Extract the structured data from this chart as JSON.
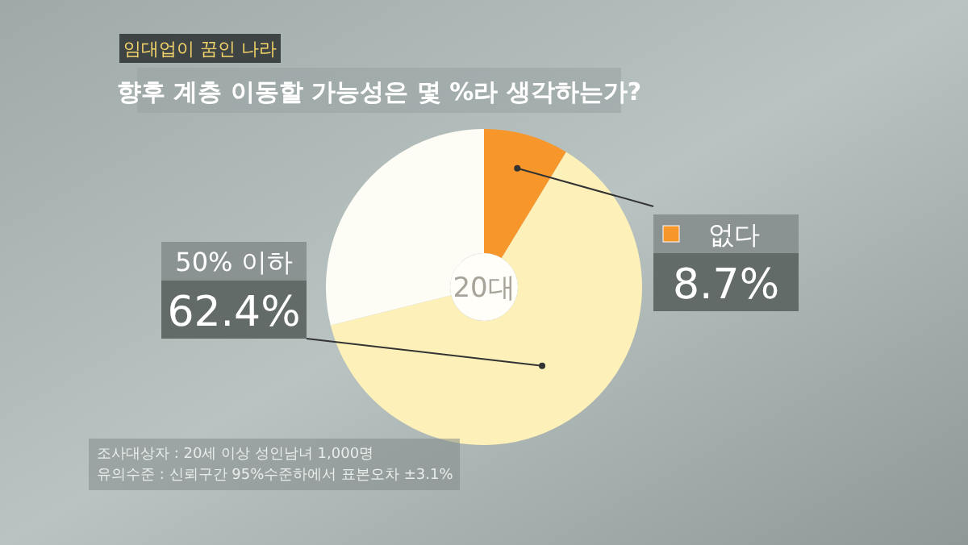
{
  "chart_data": {
    "type": "donut",
    "title": "향후 계층 이동할 가능성은 몇 %라 생각하는가?",
    "subtitle": "20대",
    "categories": [
      "없다",
      "50% 이하",
      null
    ],
    "values": [
      8.7,
      62.4,
      28.9
    ],
    "colors": [
      "#f7962a",
      "#fdf0b8",
      "#fdfcf5"
    ],
    "value_labels": [
      "8.7%",
      "62.4%",
      null
    ],
    "annotations": [
      "임대업이 꿈인 나라",
      "조사대상자 : 20세 이상 성인남녀 1,000명",
      "유의수준 : 신뢰구간 95%수준하에서 표본오차 ±3.1%"
    ]
  }
}
